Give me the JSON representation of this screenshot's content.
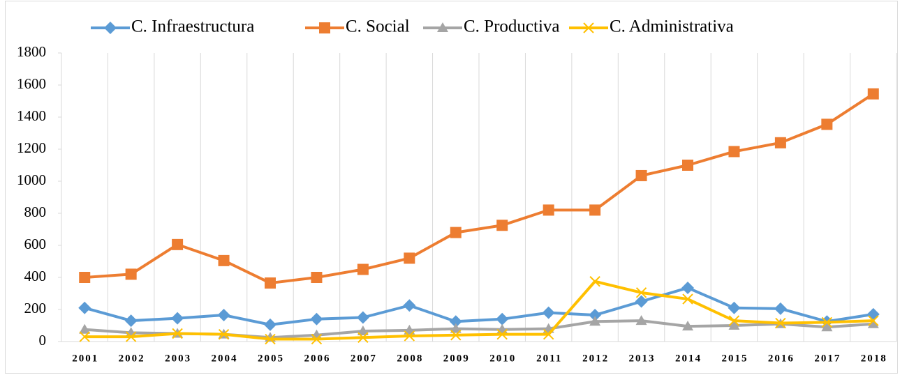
{
  "chart_data": {
    "type": "line",
    "categories": [
      "2001",
      "2002",
      "2003",
      "2004",
      "2005",
      "2006",
      "2007",
      "2008",
      "2009",
      "2010",
      "2011",
      "2012",
      "2013",
      "2014",
      "2015",
      "2016",
      "2017",
      "2018"
    ],
    "series": [
      {
        "name": "C. Infraestructura",
        "color": "#5b9bd5",
        "marker": "diamond",
        "values": [
          210,
          130,
          145,
          165,
          105,
          140,
          150,
          225,
          125,
          140,
          180,
          165,
          250,
          335,
          210,
          205,
          125,
          170
        ]
      },
      {
        "name": "C. Social",
        "color": "#ed7d31",
        "marker": "square",
        "values": [
          400,
          420,
          605,
          505,
          365,
          400,
          450,
          520,
          680,
          725,
          820,
          820,
          1035,
          1100,
          1185,
          1240,
          1355,
          1545
        ]
      },
      {
        "name": "C. Productiva",
        "color": "#a5a5a5",
        "marker": "triangle",
        "values": [
          75,
          55,
          50,
          45,
          25,
          40,
          65,
          70,
          80,
          75,
          80,
          125,
          130,
          95,
          100,
          110,
          90,
          110
        ]
      },
      {
        "name": "C. Administrativa",
        "color": "#ffc000",
        "marker": "x",
        "values": [
          30,
          30,
          50,
          45,
          15,
          15,
          25,
          35,
          40,
          45,
          45,
          375,
          305,
          265,
          130,
          115,
          120,
          130
        ]
      }
    ],
    "ylim": [
      0,
      1800
    ],
    "yticks": [
      0,
      200,
      400,
      600,
      800,
      1000,
      1200,
      1400,
      1600,
      1800
    ],
    "grid": "x",
    "legend": "top"
  }
}
